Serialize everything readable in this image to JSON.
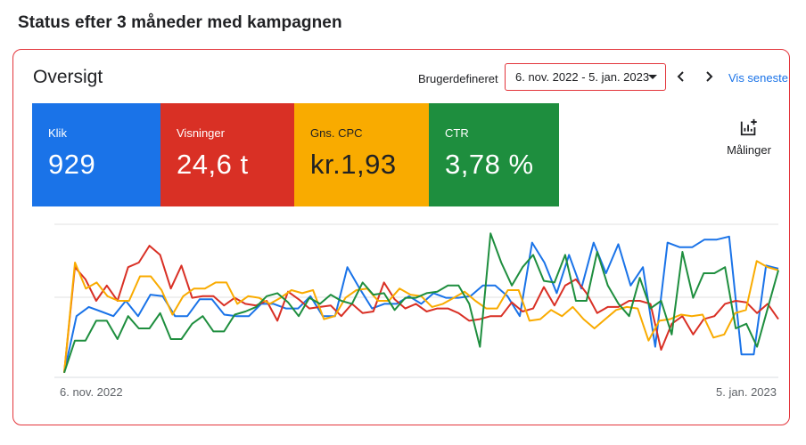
{
  "page": {
    "title": "Status efter 3 måneder med kampagnen"
  },
  "header": {
    "title": "Oversigt",
    "range_label": "Brugerdefineret",
    "date_range": "6. nov. 2022 - 5. jan. 2023",
    "show_latest": "Vis seneste"
  },
  "tiles": [
    {
      "label": "Klik",
      "value": "929",
      "color": "#1a73e8"
    },
    {
      "label": "Visninger",
      "value": "24,6 t",
      "color": "#d93025"
    },
    {
      "label": "Gns. CPC",
      "value": "kr.1,93",
      "color": "#f9ab00"
    },
    {
      "label": "CTR",
      "value": "3,78 %",
      "color": "#1e8e3e"
    }
  ],
  "measurements_button": {
    "label": "Målinger",
    "icon": "add-chart-icon"
  },
  "chart_data": {
    "type": "line",
    "x_labels": [
      "6. nov. 2022",
      "5. jan. 2023"
    ],
    "grid": true,
    "ylim": [
      0,
      100
    ],
    "series": [
      {
        "color": "#1a73e8",
        "values": [
          3,
          40,
          46,
          43,
          40,
          50,
          40,
          54,
          53,
          40,
          40,
          51,
          51,
          41,
          40,
          40,
          48,
          48,
          45,
          45,
          53,
          40,
          40,
          72,
          58,
          45,
          48,
          48,
          53,
          48,
          55,
          52,
          52,
          53,
          60,
          60,
          53,
          40,
          88,
          75,
          55,
          80,
          58,
          88,
          68,
          87,
          60,
          72,
          20,
          88,
          85,
          85,
          90,
          90,
          92,
          15,
          15,
          73,
          71
        ]
      },
      {
        "color": "#d93025",
        "values": [
          3,
          72,
          64,
          50,
          60,
          50,
          72,
          75,
          86,
          80,
          58,
          73,
          52,
          53,
          53,
          47,
          52,
          48,
          47,
          50,
          37,
          56,
          51,
          45,
          46,
          47,
          40,
          48,
          42,
          43,
          62,
          51,
          45,
          48,
          43,
          45,
          45,
          42,
          37,
          38,
          40,
          40,
          49,
          43,
          45,
          59,
          47,
          60,
          64,
          55,
          42,
          46,
          46,
          50,
          50,
          48,
          18,
          35,
          40,
          28,
          38,
          40,
          48,
          50,
          49,
          42,
          48,
          38
        ]
      },
      {
        "color": "#f9ab00",
        "values": [
          3,
          75,
          58,
          62,
          53,
          50,
          50,
          66,
          66,
          57,
          41,
          53,
          58,
          58,
          62,
          62,
          48,
          53,
          52,
          48,
          52,
          57,
          55,
          57,
          38,
          40,
          52,
          57,
          58,
          50,
          50,
          58,
          54,
          53,
          46,
          48,
          52,
          56,
          50,
          45,
          45,
          57,
          57,
          37,
          38,
          44,
          40,
          46,
          38,
          32,
          38,
          44,
          46,
          45,
          24,
          37,
          38,
          41,
          40,
          41,
          26,
          28,
          42,
          44,
          76,
          72,
          70
        ]
      },
      {
        "color": "#1e8e3e",
        "values": [
          3,
          24,
          24,
          37,
          37,
          25,
          40,
          32,
          32,
          42,
          25,
          25,
          35,
          40,
          30,
          30,
          41,
          43,
          46,
          53,
          55,
          49,
          40,
          52,
          48,
          54,
          50,
          48,
          62,
          54,
          55,
          44,
          52,
          52,
          55,
          56,
          60,
          60,
          48,
          20,
          94,
          75,
          60,
          72,
          80,
          63,
          62,
          80,
          50,
          50,
          82,
          60,
          48,
          40,
          65,
          45,
          50,
          28,
          82,
          52,
          68,
          68,
          72,
          32,
          35,
          20,
          45,
          70
        ]
      }
    ]
  }
}
